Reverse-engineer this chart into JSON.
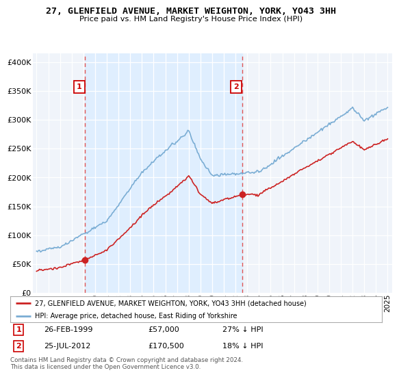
{
  "title": "27, GLENFIELD AVENUE, MARKET WEIGHTON, YORK, YO43 3HH",
  "subtitle": "Price paid vs. HM Land Registry's House Price Index (HPI)",
  "ylabel_ticks": [
    "£0",
    "£50K",
    "£100K",
    "£150K",
    "£200K",
    "£250K",
    "£300K",
    "£350K",
    "£400K"
  ],
  "ytick_values": [
    0,
    50000,
    100000,
    150000,
    200000,
    250000,
    300000,
    350000,
    400000
  ],
  "ylim": [
    0,
    415000
  ],
  "xlim_start": 1994.7,
  "xlim_end": 2025.4,
  "purchase1_x": 1999.15,
  "purchase1_y": 57000,
  "purchase1_label": "1",
  "purchase1_date": "26-FEB-1999",
  "purchase1_price": "£57,000",
  "purchase1_hpi": "27% ↓ HPI",
  "purchase2_x": 2012.56,
  "purchase2_y": 170500,
  "purchase2_label": "2",
  "purchase2_date": "25-JUL-2012",
  "purchase2_price": "£170,500",
  "purchase2_hpi": "18% ↓ HPI",
  "hpi_color": "#7aadd4",
  "price_color": "#cc2222",
  "vline_color": "#e05555",
  "shade_color": "#ddeeff",
  "bg_color": "#f0f4fa",
  "legend_label1": "27, GLENFIELD AVENUE, MARKET WEIGHTON, YORK, YO43 3HH (detached house)",
  "legend_label2": "HPI: Average price, detached house, East Riding of Yorkshire",
  "footer": "Contains HM Land Registry data © Crown copyright and database right 2024.\nThis data is licensed under the Open Government Licence v3.0.",
  "xtick_years": [
    1995,
    1996,
    1997,
    1998,
    1999,
    2000,
    2001,
    2002,
    2003,
    2004,
    2005,
    2006,
    2007,
    2008,
    2009,
    2010,
    2011,
    2012,
    2013,
    2014,
    2015,
    2016,
    2017,
    2018,
    2019,
    2020,
    2021,
    2022,
    2023,
    2024,
    2025
  ]
}
